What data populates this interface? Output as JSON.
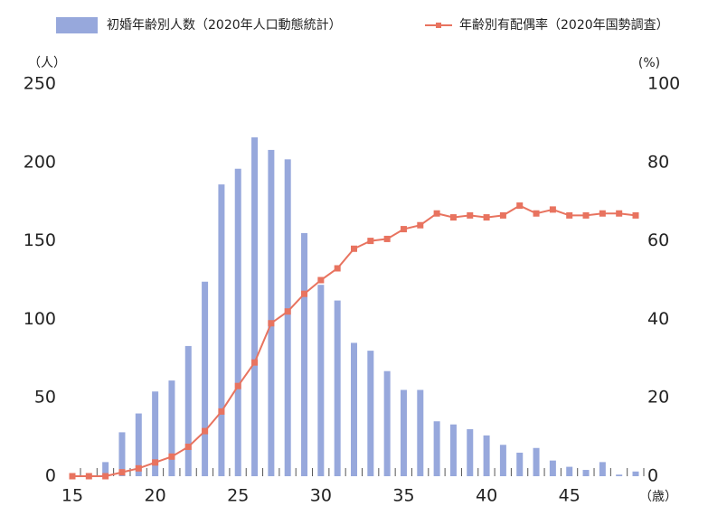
{
  "chart_data": {
    "type": "combo",
    "x": [
      15,
      16,
      17,
      18,
      19,
      20,
      21,
      22,
      23,
      24,
      25,
      26,
      27,
      28,
      29,
      30,
      31,
      32,
      33,
      34,
      35,
      36,
      37,
      38,
      39,
      40,
      41,
      42,
      43,
      44,
      45,
      46,
      47,
      48,
      49
    ],
    "xlim": [
      15,
      49
    ],
    "xticks": [
      15,
      20,
      25,
      30,
      35,
      40,
      45
    ],
    "x_label": "（歳）",
    "ylim": [
      0,
      250
    ],
    "yticks": [
      0,
      50,
      100,
      150,
      200,
      250
    ],
    "y_label": "（人）",
    "y2lim": [
      0,
      100
    ],
    "y2ticks": [
      0,
      20,
      40,
      60,
      80,
      100
    ],
    "y2_label": "(%)",
    "series": [
      {
        "name": "初婚年齢別人数（2020年人口動態統計）",
        "type": "bar",
        "color": "#97a8dc",
        "values": [
          0,
          0,
          9,
          28,
          40,
          54,
          61,
          83,
          124,
          186,
          196,
          216,
          208,
          202,
          155,
          122,
          112,
          85,
          80,
          67,
          55,
          55,
          35,
          33,
          30,
          26,
          20,
          15,
          18,
          10,
          6,
          4,
          9,
          1,
          3
        ]
      },
      {
        "name": "年齢別有配偶率（2020年国勢調査）",
        "type": "line",
        "axis": "y2",
        "color": "#e8735f",
        "values": [
          0,
          0,
          0,
          1,
          2,
          3.5,
          5,
          7.5,
          11.5,
          16.5,
          23,
          29,
          39,
          42,
          46.5,
          50,
          53,
          58,
          60,
          60.5,
          63,
          64,
          67,
          66,
          66.5,
          66,
          66.5,
          69,
          67,
          68,
          66.5,
          66.5,
          67,
          67,
          66.5
        ]
      }
    ]
  }
}
